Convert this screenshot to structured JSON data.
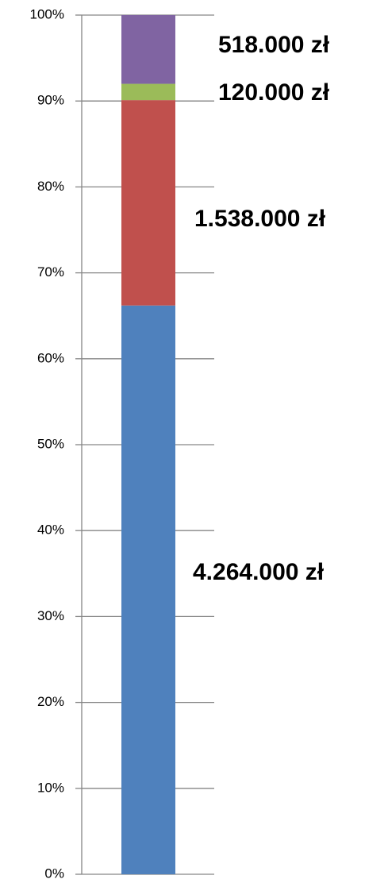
{
  "chart_data": {
    "type": "stacked_bar",
    "series": [
      {
        "color": "#4f81bd",
        "values": [
          66.2
        ],
        "label": "4.264.000 zł"
      },
      {
        "color": "#c0504d",
        "values": [
          23.9
        ],
        "label": "1.538.000 zł"
      },
      {
        "color": "#9bbb59",
        "values": [
          1.9
        ],
        "label": "120.000 zł"
      },
      {
        "color": "#8064a2",
        "values": [
          8.0
        ],
        "label": "518.000 zł"
      }
    ],
    "ylim": [
      0,
      100
    ],
    "yticks": [
      {
        "value": 0,
        "label": "0%"
      },
      {
        "value": 10,
        "label": "10%"
      },
      {
        "value": 20,
        "label": "20%"
      },
      {
        "value": 30,
        "label": "30%"
      },
      {
        "value": 40,
        "label": "40%"
      },
      {
        "value": 50,
        "label": "50%"
      },
      {
        "value": 60,
        "label": "60%"
      },
      {
        "value": 70,
        "label": "70%"
      },
      {
        "value": 80,
        "label": "80%"
      },
      {
        "value": 90,
        "label": "90%"
      },
      {
        "value": 100,
        "label": "100%"
      }
    ],
    "grid": true
  }
}
